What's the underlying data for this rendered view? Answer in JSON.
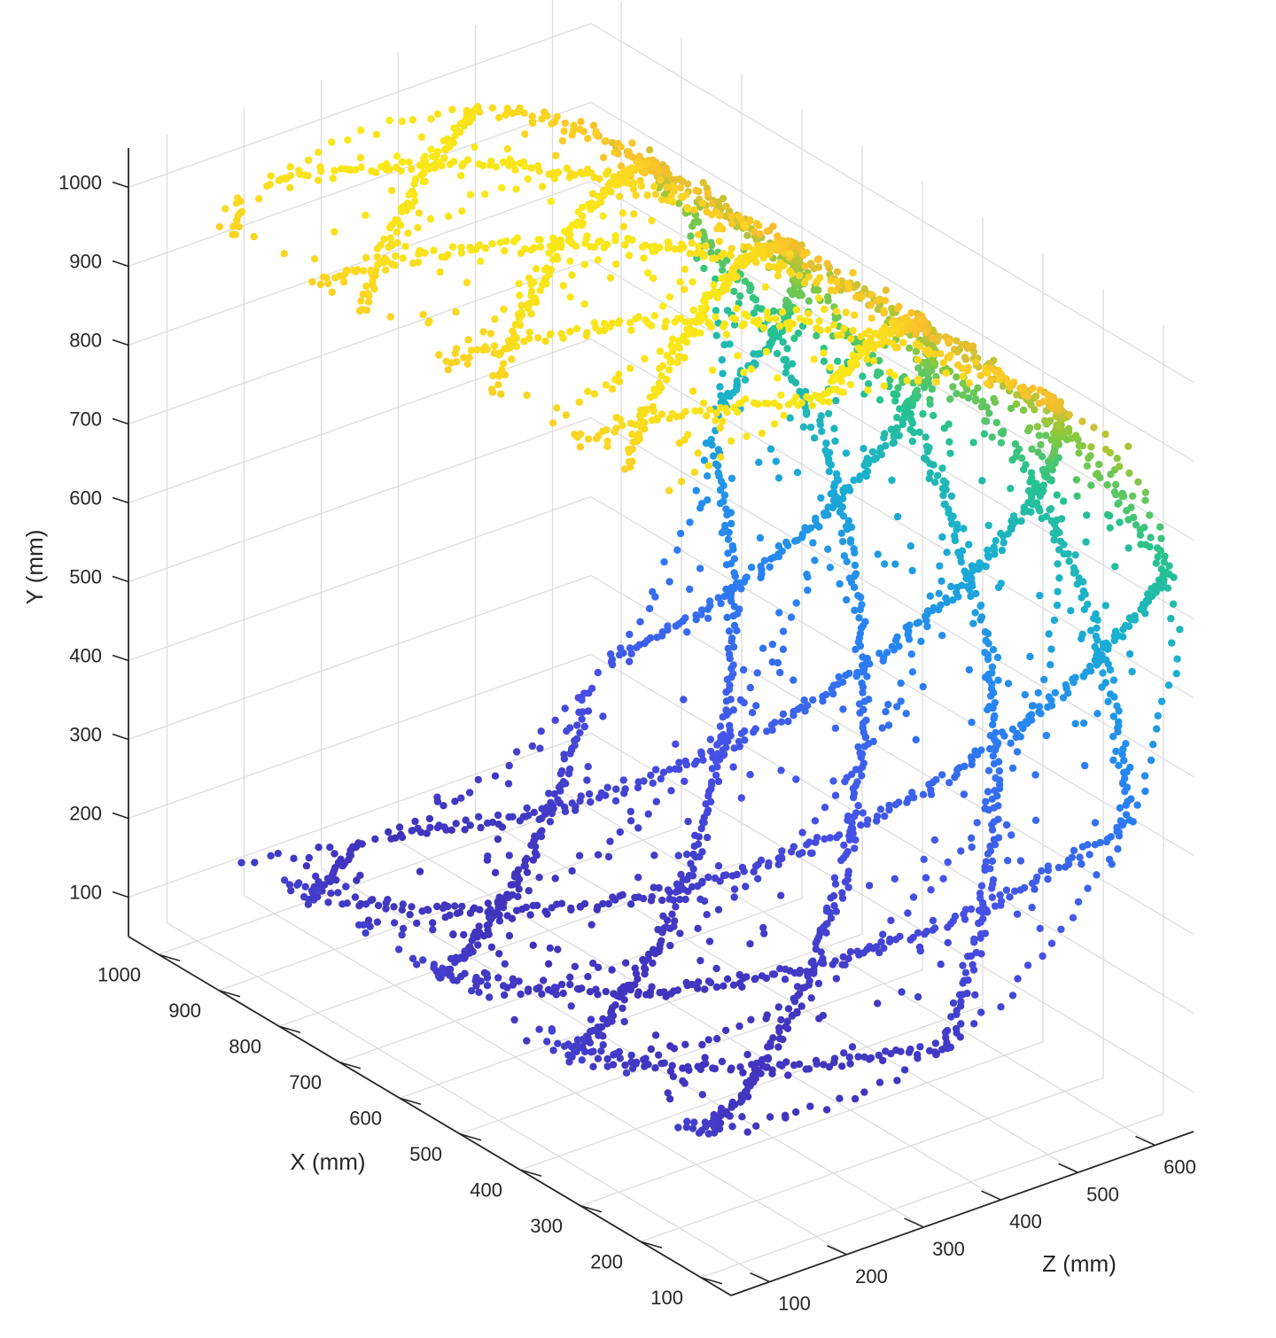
{
  "chart_data": {
    "type": "scatter3d",
    "title": "",
    "xlabel": "X (mm)",
    "ylabel": "Y (mm)",
    "zlabel": "Z (mm)",
    "x_ticks": [
      100,
      200,
      300,
      400,
      500,
      600,
      700,
      800,
      900,
      1000
    ],
    "y_ticks": [
      100,
      200,
      300,
      400,
      500,
      600,
      700,
      800,
      900,
      1000
    ],
    "z_ticks": [
      100,
      200,
      300,
      400,
      500,
      600
    ],
    "xlim": [
      50,
      1050
    ],
    "ylim": [
      50,
      1050
    ],
    "zlim": [
      50,
      650
    ],
    "grid": true,
    "colormap": "parula",
    "color_by": "y",
    "series": [
      {
        "shape": "cylindrical point cloud of a scanned tube with helical lattice members",
        "cylinder_axis": "x",
        "center_y": 550,
        "center_z": 330,
        "radius": 450,
        "x_range": [
          250,
          1000
        ],
        "opening": "front-lower side facing negative z is open"
      }
    ]
  }
}
